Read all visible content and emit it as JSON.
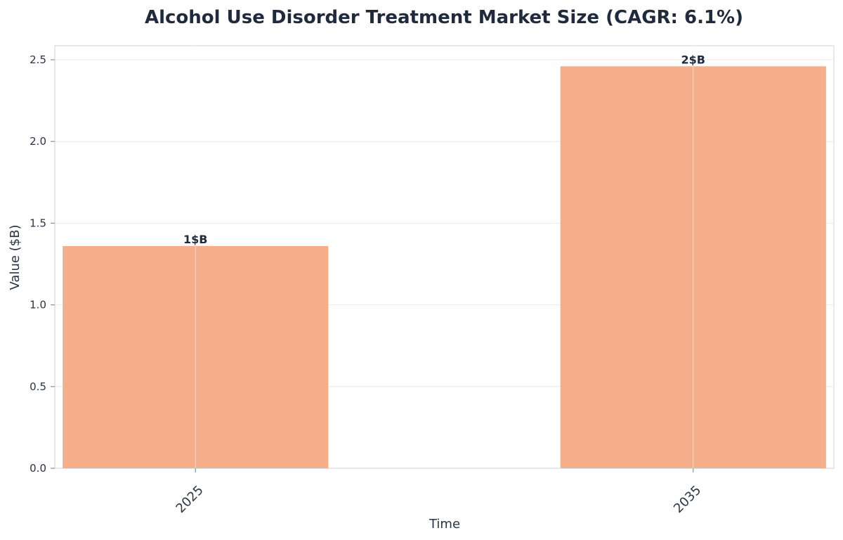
{
  "chart_data": {
    "type": "bar",
    "title": "Alcohol Use Disorder Treatment Market Size (CAGR: 6.1%)",
    "xlabel": "Time",
    "ylabel": "Value ($B)",
    "categories": [
      "2025",
      "2035"
    ],
    "values": [
      1.36,
      2.46
    ],
    "data_labels": [
      "1$B",
      "2$B"
    ],
    "ylim": [
      0,
      2.6
    ],
    "yticks": [
      0.0,
      0.5,
      1.0,
      1.5,
      2.0,
      2.5
    ],
    "ytick_labels": [
      "0.0",
      "0.5",
      "1.0",
      "1.5",
      "2.0",
      "2.5"
    ],
    "grid": true,
    "colors": {
      "bar": "#f5ae8a",
      "grid": "#e6e9ed",
      "axis": "#d5dade",
      "title": "#1f2a3c"
    }
  }
}
